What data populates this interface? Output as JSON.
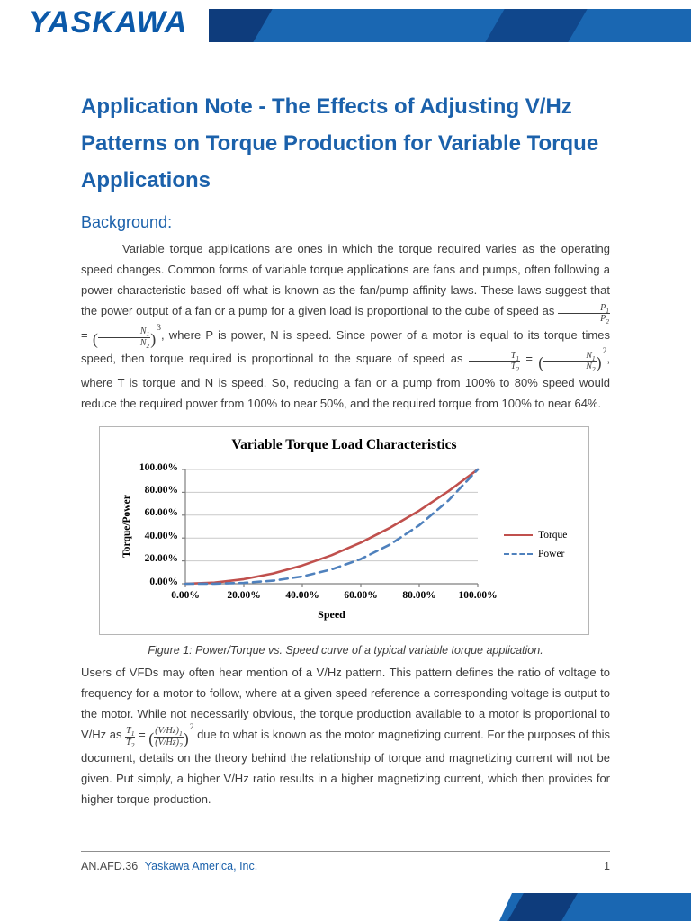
{
  "brand": {
    "logo_text": "YASKAWA",
    "logo_color": "#0b59a9",
    "ribbon_blue": "#1a67b2",
    "ribbon_navy": "#0e3c7c",
    "accent_blue": "#1b61ab"
  },
  "title_lines": [
    "Application Note - The Effects of Adjusting V/Hz",
    "Patterns on Torque Production for Variable Torque",
    "Applications"
  ],
  "section_heading": "Background:",
  "paragraph1_segments": [
    {
      "s": "Variable torque applications are ones in which the torque required varies as the operating speed changes. Common forms of variable torque applications are fans and pumps, often following a power characteristic based off what is known as the fan/pump affinity laws. These laws suggest that the power output of a fan or a pump for a given load is proportional to the cube of speed as "
    },
    {
      "f": [
        "P_1",
        "P_2"
      ]
    },
    {
      "s": " = "
    },
    {
      "g": [
        "N_1",
        "N_2"
      ],
      "p": "3"
    },
    {
      "s": ", where P is power, N is speed. Since power of a motor is equal to its torque times speed, then torque required is proportional to the square of speed as "
    },
    {
      "f": [
        "T_1",
        "T_2"
      ]
    },
    {
      "s": " = "
    },
    {
      "g": [
        "N_1",
        "N_2"
      ],
      "p": "2"
    },
    {
      "s": ", where T is torque and N is speed. So, reducing a fan or a pump from 100% to 80% speed would reduce the required power from 100% to near 50%, and the required torque from 100% to near 64%."
    }
  ],
  "figure_caption": "Figure 1: Power/Torque vs. Speed curve of a typical variable torque application.",
  "chart_data": {
    "type": "line",
    "title": "Variable Torque Load Characteristics",
    "xlabel": "Speed",
    "ylabel": "Torque/Power",
    "x_ticks": [
      "0.00%",
      "20.00%",
      "40.00%",
      "60.00%",
      "80.00%",
      "100.00%"
    ],
    "y_ticks": [
      "0.00%",
      "20.00%",
      "40.00%",
      "60.00%",
      "80.00%",
      "100.00%"
    ],
    "xlim": [
      0,
      100
    ],
    "ylim": [
      0,
      100
    ],
    "grid": "horizontal",
    "legend_position": "right",
    "x": [
      0,
      10,
      20,
      30,
      40,
      50,
      60,
      70,
      80,
      90,
      100
    ],
    "series": [
      {
        "name": "Torque",
        "color": "#c0504d",
        "style": "solid",
        "values": [
          0,
          1,
          4,
          9,
          16,
          25,
          36,
          49,
          64,
          81,
          100
        ]
      },
      {
        "name": "Power",
        "color": "#4f81bd",
        "style": "dashed",
        "values": [
          0,
          0.1,
          0.8,
          2.7,
          6.4,
          12.5,
          21.6,
          34.3,
          51.2,
          72.9,
          100
        ]
      }
    ]
  },
  "paragraph2_segments": [
    {
      "s": "Users of VFDs may often hear mention of a V/Hz pattern. This pattern defines the ratio of voltage to frequency for a motor to follow, where at a given speed reference a corresponding voltage is output to the motor. While not necessarily obvious, the torque production available to a motor is proportional to V/Hz as "
    },
    {
      "f": [
        "T_1",
        "T_2"
      ]
    },
    {
      "s": " = "
    },
    {
      "g": [
        "(V/Hz)_1",
        "(V/Hz)_2"
      ],
      "p": "2"
    },
    {
      "s": " due to what is known as the motor magnetizing current. For the purposes of this document, details on the theory behind the relationship of torque and magnetizing current will not be given. Put simply, a higher V/Hz ratio results in a higher magnetizing current, which then provides for higher torque production."
    }
  ],
  "footer": {
    "doc_id": "AN.AFD.36",
    "company_link": "Yaskawa America, Inc.",
    "page_number": "1"
  }
}
